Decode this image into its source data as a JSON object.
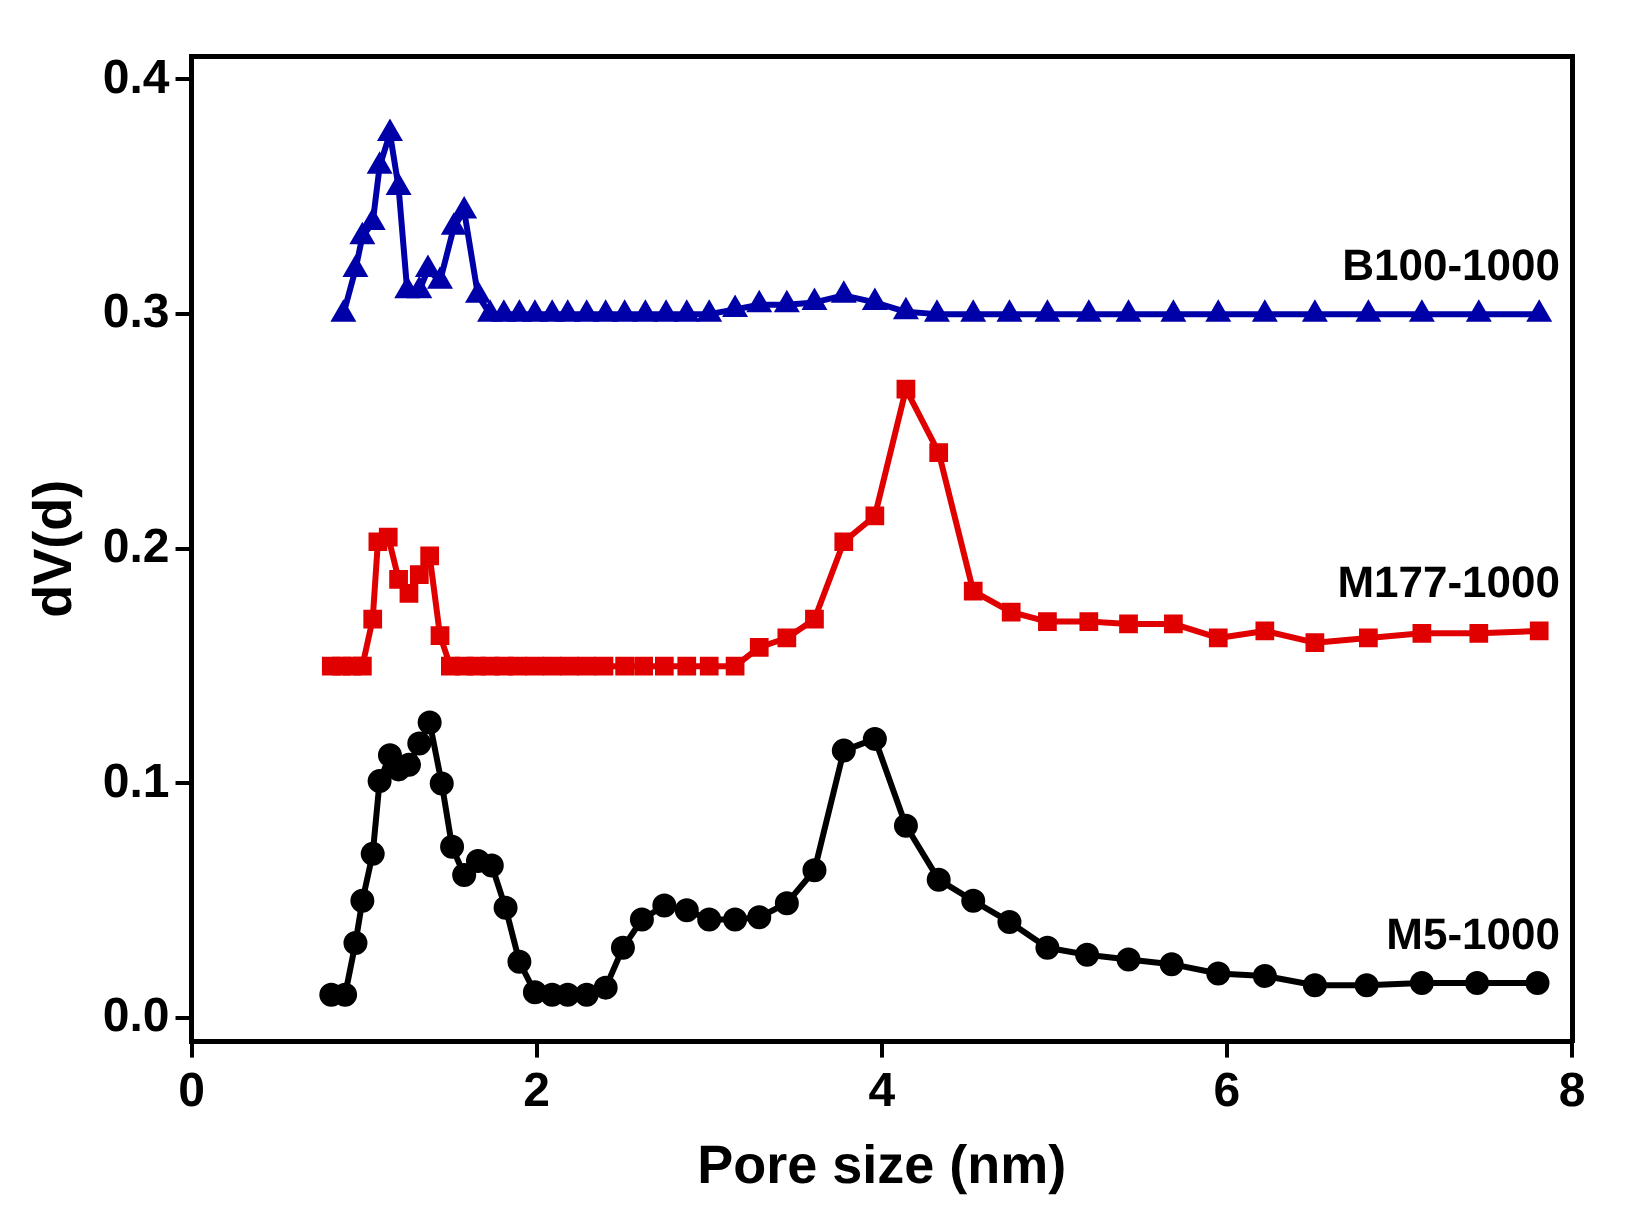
{
  "chart_data": {
    "type": "line",
    "xlabel": "Pore size (nm)",
    "ylabel": "dV(d)",
    "xlim": [
      0,
      8
    ],
    "xticks": [
      0,
      2,
      4,
      6,
      8
    ],
    "ylim": [
      -0.01,
      0.41
    ],
    "yticks": [
      {
        "value": 0,
        "label": "0.0"
      },
      0.1,
      0.2,
      0.3,
      0.4
    ],
    "grid": false,
    "legend": false,
    "series": [
      {
        "name": "M5-1000",
        "color": "#000000",
        "marker": "circle",
        "x": [
          0.81,
          0.89,
          0.95,
          0.99,
          1.05,
          1.09,
          1.15,
          1.2,
          1.26,
          1.32,
          1.38,
          1.45,
          1.51,
          1.58,
          1.66,
          1.74,
          1.82,
          1.9,
          1.99,
          2.09,
          2.18,
          2.29,
          2.4,
          2.5,
          2.61,
          2.74,
          2.87,
          3.0,
          3.15,
          3.29,
          3.45,
          3.61,
          3.78,
          3.96,
          4.14,
          4.33,
          4.53,
          4.74,
          4.96,
          5.19,
          5.43,
          5.68,
          5.95,
          6.22,
          6.51,
          6.81,
          7.13,
          7.45,
          7.8
        ],
        "values": [
          0.01,
          0.01,
          0.032,
          0.05,
          0.07,
          0.101,
          0.112,
          0.106,
          0.108,
          0.117,
          0.126,
          0.1,
          0.073,
          0.061,
          0.067,
          0.065,
          0.047,
          0.024,
          0.011,
          0.01,
          0.01,
          0.01,
          0.013,
          0.03,
          0.042,
          0.048,
          0.046,
          0.042,
          0.042,
          0.043,
          0.049,
          0.063,
          0.114,
          0.119,
          0.082,
          0.059,
          0.05,
          0.041,
          0.03,
          0.027,
          0.025,
          0.023,
          0.019,
          0.018,
          0.014,
          0.014,
          0.015,
          0.015,
          0.015
        ]
      },
      {
        "name": "M177-1000",
        "color": "#e00000",
        "marker": "square",
        "x": [
          0.81,
          0.87,
          0.93,
          0.99,
          1.05,
          1.08,
          1.14,
          1.2,
          1.26,
          1.32,
          1.38,
          1.44,
          1.5,
          1.58,
          1.65,
          1.73,
          1.81,
          1.89,
          1.99,
          2.09,
          2.19,
          2.29,
          2.39,
          2.51,
          2.62,
          2.74,
          2.87,
          3.0,
          3.15,
          3.29,
          3.45,
          3.61,
          3.78,
          3.96,
          4.14,
          4.33,
          4.53,
          4.75,
          4.96,
          5.2,
          5.43,
          5.69,
          5.95,
          6.22,
          6.51,
          6.82,
          7.13,
          7.46,
          7.81
        ],
        "values": [
          0.15,
          0.15,
          0.15,
          0.15,
          0.17,
          0.203,
          0.205,
          0.187,
          0.181,
          0.189,
          0.197,
          0.163,
          0.15,
          0.15,
          0.15,
          0.15,
          0.15,
          0.15,
          0.15,
          0.15,
          0.15,
          0.15,
          0.15,
          0.15,
          0.15,
          0.15,
          0.15,
          0.15,
          0.15,
          0.158,
          0.162,
          0.17,
          0.203,
          0.214,
          0.268,
          0.241,
          0.182,
          0.173,
          0.169,
          0.169,
          0.168,
          0.168,
          0.162,
          0.165,
          0.16,
          0.162,
          0.164,
          0.164,
          0.165
        ]
      },
      {
        "name": "B100-1000",
        "color": "#0000a8",
        "marker": "triangle",
        "x": [
          0.88,
          0.95,
          0.99,
          1.05,
          1.09,
          1.15,
          1.2,
          1.25,
          1.32,
          1.37,
          1.44,
          1.52,
          1.58,
          1.66,
          1.73,
          1.81,
          1.9,
          1.99,
          2.09,
          2.18,
          2.29,
          2.4,
          2.51,
          2.63,
          2.75,
          2.87,
          3.0,
          3.15,
          3.29,
          3.45,
          3.61,
          3.78,
          3.96,
          4.14,
          4.32,
          4.53,
          4.74,
          4.96,
          5.2,
          5.43,
          5.69,
          5.95,
          6.22,
          6.51,
          6.82,
          7.13,
          7.46,
          7.81
        ],
        "values": [
          0.3,
          0.319,
          0.333,
          0.339,
          0.363,
          0.377,
          0.354,
          0.31,
          0.31,
          0.319,
          0.314,
          0.337,
          0.344,
          0.308,
          0.3,
          0.3,
          0.3,
          0.3,
          0.3,
          0.3,
          0.3,
          0.3,
          0.3,
          0.3,
          0.3,
          0.3,
          0.3,
          0.302,
          0.304,
          0.304,
          0.305,
          0.308,
          0.305,
          0.301,
          0.3,
          0.3,
          0.3,
          0.3,
          0.3,
          0.3,
          0.3,
          0.3,
          0.3,
          0.3,
          0.3,
          0.3,
          0.3,
          0.3
        ]
      }
    ]
  }
}
